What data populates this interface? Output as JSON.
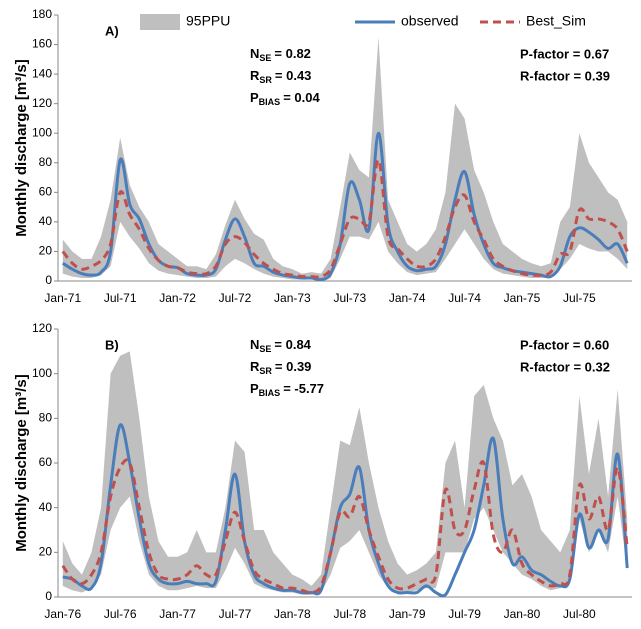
{
  "chart_data": [
    {
      "type": "line",
      "panel_label": "A)",
      "ylabel": "Monthly discharge [m³/s]",
      "categories": [
        "Jan-71",
        null,
        null,
        null,
        null,
        null,
        "Jul-71",
        null,
        null,
        null,
        null,
        null,
        "Jan-72",
        null,
        null,
        null,
        null,
        null,
        "Jul-72",
        null,
        null,
        null,
        null,
        null,
        "Jan-73",
        null,
        null,
        null,
        null,
        null,
        "Jul-73",
        null,
        null,
        null,
        null,
        null,
        "Jan-74",
        null,
        null,
        null,
        null,
        null,
        "Jul-74",
        null,
        null,
        null,
        null,
        null,
        "Jan-75",
        null,
        null,
        null,
        null,
        null,
        "Jul-75",
        null,
        null,
        null,
        null,
        null
      ],
      "ylim": [
        0,
        180
      ],
      "yticks": [
        0,
        20,
        40,
        60,
        80,
        100,
        120,
        140,
        160,
        180
      ],
      "series": [
        {
          "name": "95PPU",
          "color": "#bfbfbf",
          "upper": [
            28,
            20,
            15,
            15,
            30,
            55,
            97,
            65,
            50,
            40,
            25,
            20,
            15,
            10,
            10,
            8,
            18,
            38,
            55,
            42,
            32,
            28,
            15,
            10,
            8,
            5,
            6,
            5,
            15,
            50,
            87,
            75,
            70,
            165,
            55,
            40,
            25,
            20,
            25,
            35,
            60,
            120,
            110,
            75,
            60,
            40,
            25,
            20,
            15,
            12,
            10,
            12,
            40,
            50,
            100,
            80,
            70,
            60,
            55,
            40
          ],
          "lower": [
            5,
            3,
            2,
            2,
            4,
            10,
            40,
            30,
            22,
            12,
            7,
            5,
            4,
            3,
            2,
            2,
            3,
            10,
            15,
            12,
            8,
            5,
            3,
            2,
            1,
            1,
            1,
            1,
            2,
            15,
            30,
            30,
            28,
            40,
            20,
            12,
            6,
            4,
            5,
            6,
            15,
            25,
            35,
            25,
            15,
            8,
            5,
            4,
            3,
            2,
            2,
            2,
            8,
            15,
            25,
            22,
            20,
            20,
            15,
            8
          ]
        },
        {
          "name": "observed",
          "color": "#4a7ebb",
          "values": [
            12,
            8,
            5,
            4,
            6,
            20,
            82,
            52,
            42,
            25,
            14,
            10,
            9,
            5,
            4,
            4,
            8,
            28,
            42,
            30,
            12,
            10,
            6,
            4,
            3,
            2,
            2,
            1,
            5,
            25,
            66,
            55,
            35,
            100,
            38,
            20,
            10,
            7,
            8,
            10,
            25,
            55,
            74,
            45,
            25,
            12,
            9,
            7,
            6,
            5,
            4,
            3,
            10,
            30,
            36,
            33,
            28,
            22,
            25,
            12
          ]
        },
        {
          "name": "Best_Sim",
          "color": "#c0504d",
          "dashed": true,
          "values": [
            20,
            12,
            8,
            10,
            14,
            25,
            60,
            45,
            35,
            22,
            14,
            10,
            9,
            6,
            5,
            5,
            10,
            25,
            30,
            26,
            18,
            12,
            8,
            5,
            4,
            3,
            3,
            3,
            8,
            25,
            42,
            42,
            40,
            82,
            30,
            22,
            15,
            10,
            10,
            15,
            30,
            50,
            58,
            40,
            28,
            15,
            10,
            7,
            5,
            4,
            4,
            6,
            18,
            20,
            48,
            42,
            42,
            40,
            35,
            20
          ]
        }
      ],
      "stats": [
        {
          "symbol": "N",
          "subscript": "SE",
          "text": "= 0.82"
        },
        {
          "symbol": "R",
          "subscript": "SR",
          "text": "= 0.43"
        },
        {
          "symbol": "P",
          "subscript": "BIAS",
          "text": "= 0.04"
        }
      ],
      "factors": [
        "P-factor = 0.67",
        "R-factor = 0.39"
      ]
    },
    {
      "type": "line",
      "panel_label": "B)",
      "ylabel": "Monthly discharge [m³/s]",
      "categories": [
        "Jan-76",
        null,
        null,
        null,
        null,
        null,
        "Jul-76",
        null,
        null,
        null,
        null,
        null,
        "Jan-77",
        null,
        null,
        null,
        null,
        null,
        "Jul-77",
        null,
        null,
        null,
        null,
        null,
        "Jan-78",
        null,
        null,
        null,
        null,
        null,
        "Jul-78",
        null,
        null,
        null,
        null,
        null,
        "Jan-79",
        null,
        null,
        null,
        null,
        null,
        "Jul-79",
        null,
        null,
        null,
        null,
        null,
        "Jan-80",
        null,
        null,
        null,
        null,
        null,
        "Jul-80",
        null,
        null,
        null,
        null,
        null
      ],
      "ylim": [
        0,
        120
      ],
      "yticks": [
        0,
        20,
        40,
        60,
        80,
        100,
        120
      ],
      "series": [
        {
          "color": "#bfbfbf",
          "upper": [
            25,
            15,
            10,
            20,
            40,
            100,
            108,
            110,
            80,
            45,
            25,
            18,
            18,
            20,
            30,
            20,
            20,
            40,
            70,
            65,
            30,
            30,
            20,
            15,
            10,
            8,
            5,
            10,
            40,
            70,
            68,
            85,
            60,
            40,
            25,
            15,
            10,
            12,
            15,
            20,
            60,
            70,
            40,
            90,
            95,
            80,
            70,
            50,
            55,
            45,
            30,
            25,
            20,
            30,
            90,
            55,
            80,
            45,
            93,
            35
          ],
          "lower": [
            5,
            3,
            2,
            4,
            10,
            30,
            40,
            45,
            25,
            10,
            5,
            3,
            3,
            4,
            5,
            4,
            4,
            12,
            22,
            15,
            6,
            4,
            3,
            2,
            2,
            1,
            1,
            2,
            10,
            22,
            25,
            30,
            20,
            10,
            4,
            2,
            2,
            3,
            4,
            4,
            20,
            20,
            20,
            35,
            40,
            30,
            20,
            15,
            10,
            8,
            5,
            3,
            4,
            6,
            35,
            20,
            30,
            20,
            45,
            12
          ]
        },
        {
          "color": "#4a7ebb",
          "values": [
            9,
            8,
            5,
            4,
            15,
            50,
            77,
            60,
            35,
            15,
            8,
            6,
            6,
            7,
            6,
            6,
            7,
            30,
            55,
            25,
            10,
            6,
            4,
            3,
            3,
            2,
            2,
            3,
            20,
            40,
            46,
            58,
            30,
            15,
            5,
            2,
            2,
            2,
            5,
            2,
            1,
            10,
            20,
            30,
            50,
            71,
            35,
            15,
            18,
            12,
            10,
            7,
            5,
            8,
            37,
            22,
            30,
            26,
            64,
            13
          ]
        },
        {
          "color": "#c0504d",
          "dashed": true,
          "values": [
            14,
            8,
            6,
            10,
            20,
            45,
            58,
            60,
            40,
            20,
            10,
            8,
            8,
            10,
            14,
            10,
            10,
            25,
            38,
            25,
            12,
            8,
            6,
            4,
            4,
            3,
            2,
            5,
            20,
            38,
            36,
            45,
            30,
            18,
            8,
            4,
            4,
            6,
            8,
            10,
            48,
            30,
            30,
            48,
            60,
            28,
            20,
            30,
            15,
            10,
            7,
            5,
            6,
            10,
            50,
            35,
            45,
            30,
            58,
            22
          ]
        }
      ],
      "stats": [
        {
          "symbol": "N",
          "subscript": "SE",
          "text": "= 0.84"
        },
        {
          "symbol": "R",
          "subscript": "SR",
          "text": "= 0.39"
        },
        {
          "symbol": "P",
          "subscript": "BIAS",
          "text": "= -5.77"
        }
      ],
      "factors": [
        "P-factor = 0.60",
        "R-factor = 0.32"
      ]
    }
  ]
}
